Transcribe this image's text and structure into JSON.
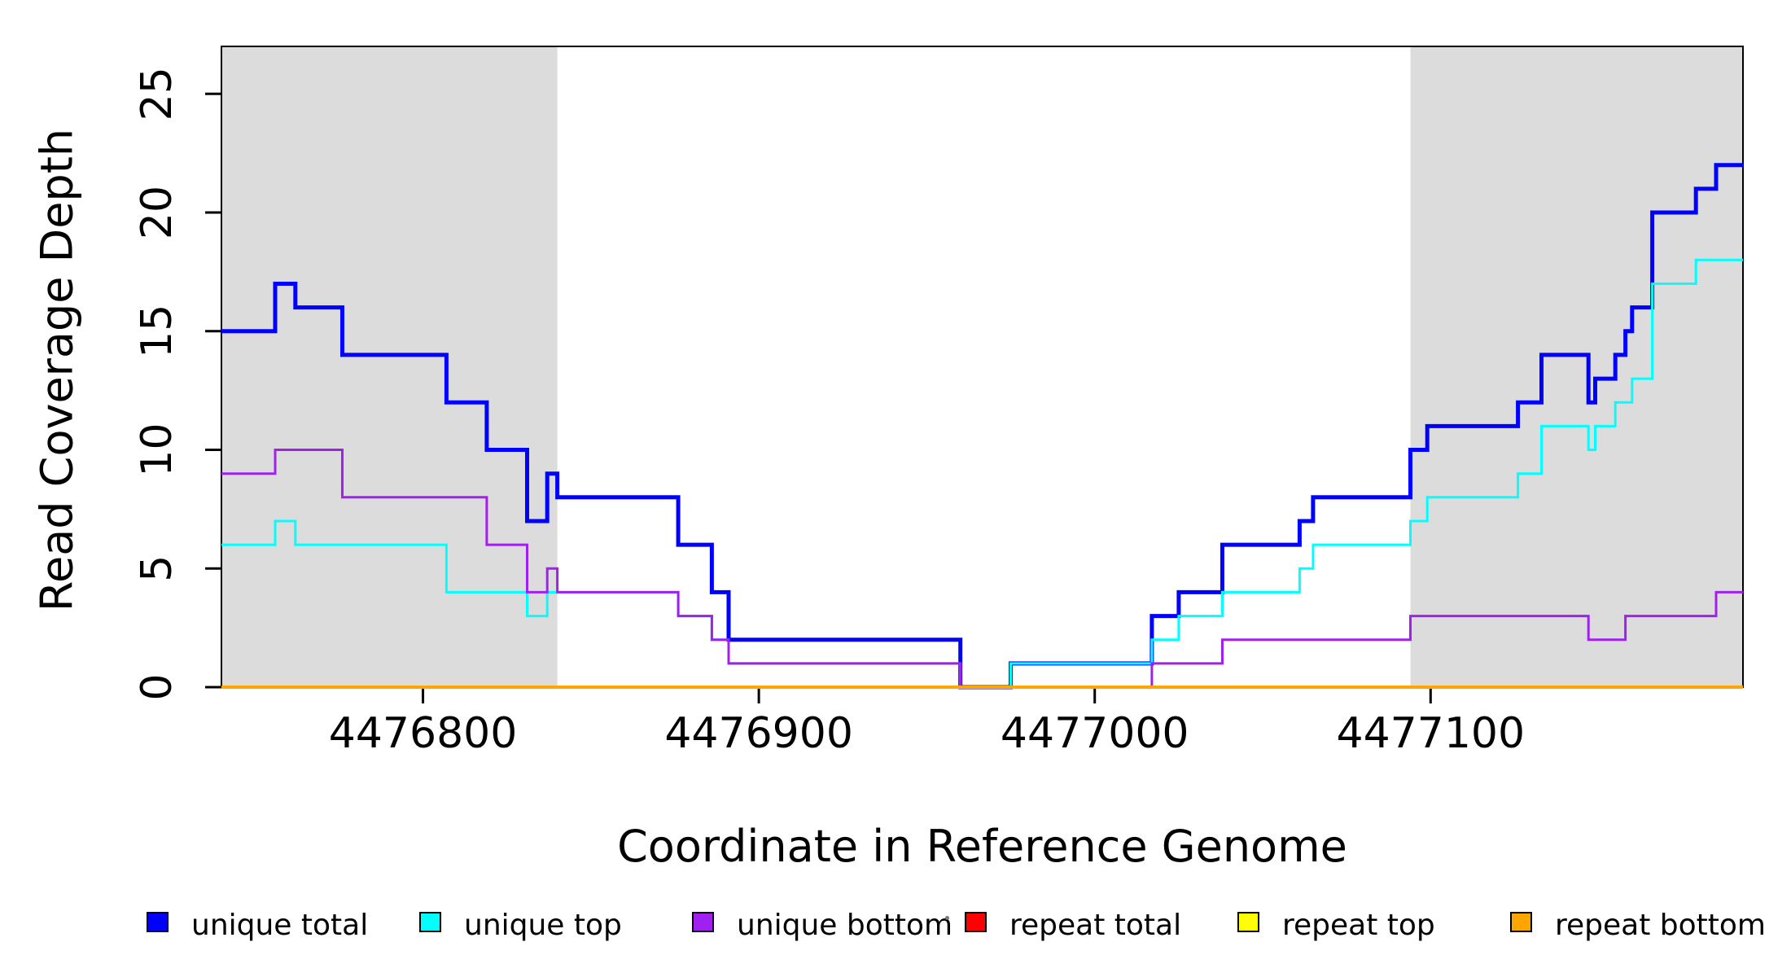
{
  "chart_data": {
    "type": "line",
    "subtype": "step",
    "title": "",
    "xlabel": "Coordinate in Reference Genome",
    "ylabel": "Read Coverage Depth",
    "xlim": [
      4476740,
      4477193
    ],
    "ylim": [
      0,
      27
    ],
    "grid": false,
    "legend_position": "bottom",
    "xticks": [
      {
        "v": 4476800,
        "label": "4476800"
      },
      {
        "v": 4476900,
        "label": "4476900"
      },
      {
        "v": 4477000,
        "label": "4477000"
      },
      {
        "v": 4477100,
        "label": "4477100"
      }
    ],
    "yticks": [
      {
        "v": 0,
        "label": "0"
      },
      {
        "v": 5,
        "label": "5"
      },
      {
        "v": 10,
        "label": "10"
      },
      {
        "v": 15,
        "label": "15"
      },
      {
        "v": 20,
        "label": "20"
      },
      {
        "v": 25,
        "label": "25"
      }
    ],
    "shaded_regions": [
      {
        "name": "repeat-region-left",
        "x_start": 4476740,
        "x_end": 4476840,
        "color": "#DCDCDC"
      },
      {
        "name": "repeat-region-right",
        "x_start": 4477094,
        "x_end": 4477193,
        "color": "#DCDCDC"
      }
    ],
    "series": [
      {
        "name": "unique total",
        "color": "#0000FF",
        "line_width": 5,
        "start_value": 15,
        "breakpoints": [
          [
            4476756,
            17
          ],
          [
            4476762,
            16
          ],
          [
            4476776,
            14
          ],
          [
            4476807,
            12
          ],
          [
            4476819,
            10
          ],
          [
            4476831,
            7
          ],
          [
            4476837,
            9
          ],
          [
            4476840,
            8
          ],
          [
            4476876,
            6
          ],
          [
            4476886,
            4
          ],
          [
            4476891,
            2
          ],
          [
            4476960,
            0
          ],
          [
            4476975,
            1
          ],
          [
            4477017,
            3
          ],
          [
            4477025,
            4
          ],
          [
            4477038,
            6
          ],
          [
            4477061,
            7
          ],
          [
            4477065,
            8
          ],
          [
            4477094,
            10
          ],
          [
            4477099,
            11
          ],
          [
            4477126,
            12
          ],
          [
            4477133,
            14
          ],
          [
            4477147,
            12
          ],
          [
            4477149,
            13
          ],
          [
            4477155,
            14
          ],
          [
            4477158,
            15
          ],
          [
            4477160,
            16
          ],
          [
            4477166,
            20
          ],
          [
            4477179,
            21
          ],
          [
            4477185,
            22
          ]
        ]
      },
      {
        "name": "unique top",
        "color": "#00FFFF",
        "line_width": 3,
        "start_value": 6,
        "breakpoints": [
          [
            4476756,
            7
          ],
          [
            4476762,
            6
          ],
          [
            4476807,
            4
          ],
          [
            4476831,
            3
          ],
          [
            4476837,
            4
          ],
          [
            4476876,
            3
          ],
          [
            4476886,
            2
          ],
          [
            4476891,
            1
          ],
          [
            4476960,
            0
          ],
          [
            4476975,
            1
          ],
          [
            4477017,
            2
          ],
          [
            4477025,
            3
          ],
          [
            4477038,
            4
          ],
          [
            4477061,
            5
          ],
          [
            4477065,
            6
          ],
          [
            4477094,
            7
          ],
          [
            4477099,
            8
          ],
          [
            4477126,
            9
          ],
          [
            4477133,
            11
          ],
          [
            4477147,
            10
          ],
          [
            4477149,
            11
          ],
          [
            4477155,
            12
          ],
          [
            4477160,
            13
          ],
          [
            4477166,
            17
          ],
          [
            4477179,
            18
          ]
        ]
      },
      {
        "name": "unique bottom",
        "color": "#A020F0",
        "line_width": 3,
        "start_value": 9,
        "breakpoints": [
          [
            4476756,
            10
          ],
          [
            4476776,
            8
          ],
          [
            4476819,
            6
          ],
          [
            4476831,
            4
          ],
          [
            4476837,
            5
          ],
          [
            4476840,
            4
          ],
          [
            4476876,
            3
          ],
          [
            4476886,
            2
          ],
          [
            4476891,
            1
          ],
          [
            4476960,
            0
          ],
          [
            4477017,
            1
          ],
          [
            4477038,
            2
          ],
          [
            4477094,
            3
          ],
          [
            4477147,
            2
          ],
          [
            4477158,
            3
          ],
          [
            4477185,
            4
          ]
        ]
      },
      {
        "name": "repeat total",
        "color": "#FF0000",
        "line_width": 3,
        "start_value": 0,
        "breakpoints": []
      },
      {
        "name": "repeat top",
        "color": "#FFFF00",
        "line_width": 3,
        "start_value": 0,
        "breakpoints": []
      },
      {
        "name": "repeat bottom",
        "color": "#FFA500",
        "line_width": 4,
        "start_value": 0,
        "breakpoints": []
      }
    ]
  },
  "axis": {
    "x_title": "Coordinate in Reference Genome",
    "y_title": "Read Coverage Depth"
  },
  "legend": {
    "items": [
      {
        "label": "unique total",
        "color": "#0000FF"
      },
      {
        "label": "unique top",
        "color": "#00FFFF"
      },
      {
        "label": "unique bottom",
        "color": "#A020F0"
      },
      {
        "label": "repeat total",
        "color": "#FF0000"
      },
      {
        "label": "repeat top",
        "color": "#FFFF00"
      },
      {
        "label": "repeat bottom",
        "color": "#FFA500"
      }
    ]
  }
}
